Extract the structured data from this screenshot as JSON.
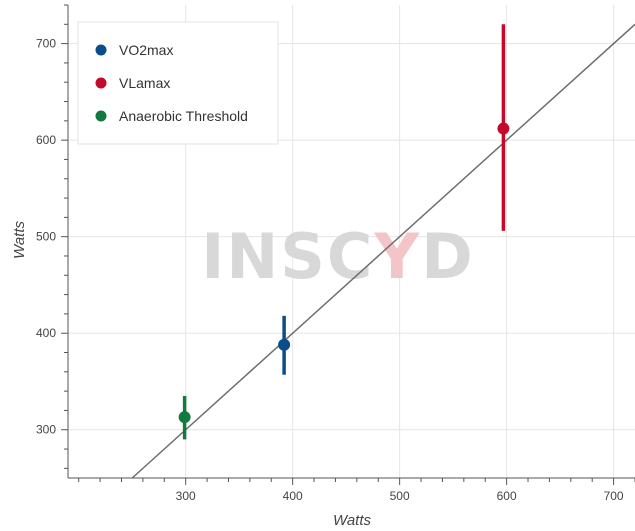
{
  "chart_data": {
    "type": "scatter",
    "xlabel": "Watts",
    "ylabel": "Watts",
    "xlim": [
      190,
      720
    ],
    "ylim": [
      250,
      740
    ],
    "x_ticks": [
      300,
      400,
      500,
      600,
      700
    ],
    "y_ticks": [
      300,
      400,
      500,
      600,
      700
    ],
    "grid": true,
    "legend_position": "top-left",
    "reference_line": {
      "type": "identity",
      "color": "#6e6e6e"
    },
    "series": [
      {
        "name": "VO2max",
        "color": "#0b4d8c",
        "points": [
          {
            "x": 392,
            "y": 388,
            "y_low": 357,
            "y_high": 418
          }
        ]
      },
      {
        "name": "VLamax",
        "color": "#c40a2c",
        "points": [
          {
            "x": 597,
            "y": 612,
            "y_low": 506,
            "y_high": 720
          }
        ]
      },
      {
        "name": "Anaerobic Threshold",
        "color": "#117a3e",
        "points": [
          {
            "x": 299,
            "y": 313,
            "y_low": 290,
            "y_high": 335
          }
        ]
      }
    ]
  },
  "watermark": {
    "letters": [
      "I",
      "N",
      "S",
      "C",
      "Y",
      "D"
    ],
    "highlight_index": 4,
    "color": "#d8d8d8",
    "highlight_color": "#f3c4c8"
  }
}
